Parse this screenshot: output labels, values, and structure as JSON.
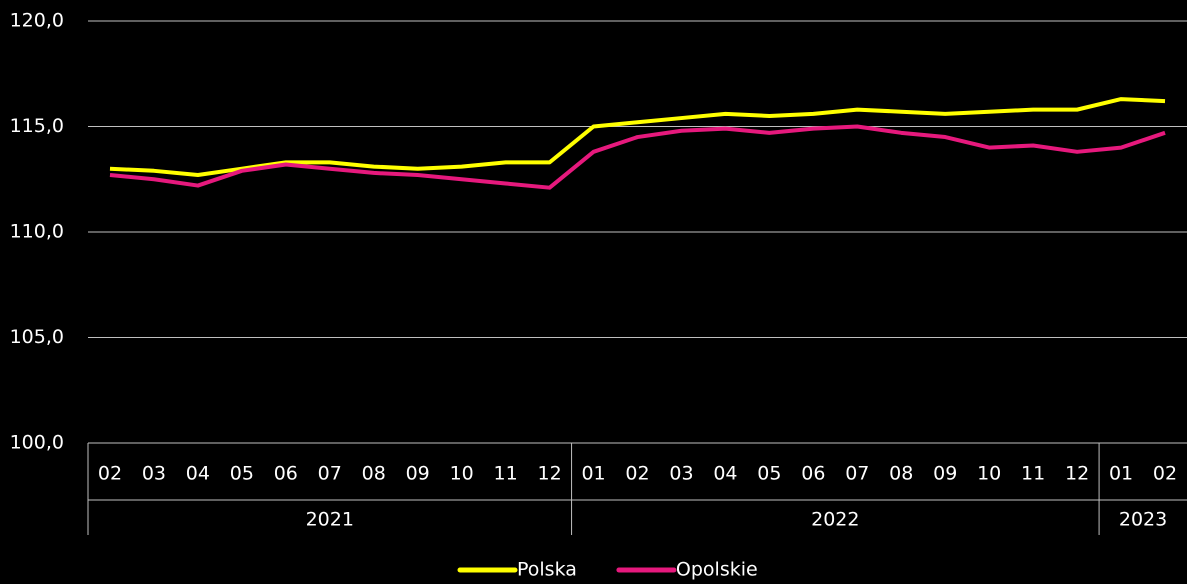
{
  "chart_data": {
    "type": "line",
    "category_groups": [
      {
        "label": "2021",
        "categories": [
          "02",
          "03",
          "04",
          "05",
          "06",
          "07",
          "08",
          "09",
          "10",
          "11",
          "12"
        ]
      },
      {
        "label": "2022",
        "categories": [
          "01",
          "02",
          "03",
          "04",
          "05",
          "06",
          "07",
          "08",
          "09",
          "10",
          "11",
          "12"
        ]
      },
      {
        "label": "2023",
        "categories": [
          "01",
          "02"
        ]
      }
    ],
    "series": [
      {
        "name": "Polska",
        "color": "#ffff00",
        "values": [
          113.0,
          112.9,
          112.7,
          113.0,
          113.3,
          113.3,
          113.1,
          113.0,
          113.1,
          113.3,
          113.3,
          115.0,
          115.2,
          115.4,
          115.6,
          115.5,
          115.6,
          115.8,
          115.7,
          115.6,
          115.7,
          115.8,
          115.8,
          116.3,
          116.2
        ]
      },
      {
        "name": "Opolskie",
        "color": "#e6197d",
        "values": [
          112.7,
          112.5,
          112.2,
          112.9,
          113.2,
          113.0,
          112.8,
          112.7,
          112.5,
          112.3,
          112.1,
          113.8,
          114.5,
          114.8,
          114.9,
          114.7,
          114.9,
          115.0,
          114.7,
          114.5,
          114.0,
          114.1,
          113.8,
          114.0,
          114.7
        ]
      }
    ],
    "ylim": [
      100,
      120
    ],
    "yticks": [
      {
        "value": 100,
        "label": "100,0"
      },
      {
        "value": 105,
        "label": "105,0"
      },
      {
        "value": 110,
        "label": "110,0"
      },
      {
        "value": 115,
        "label": "115,0"
      },
      {
        "value": 120,
        "label": "120,0"
      }
    ],
    "grid": true,
    "legend": "bottom"
  }
}
